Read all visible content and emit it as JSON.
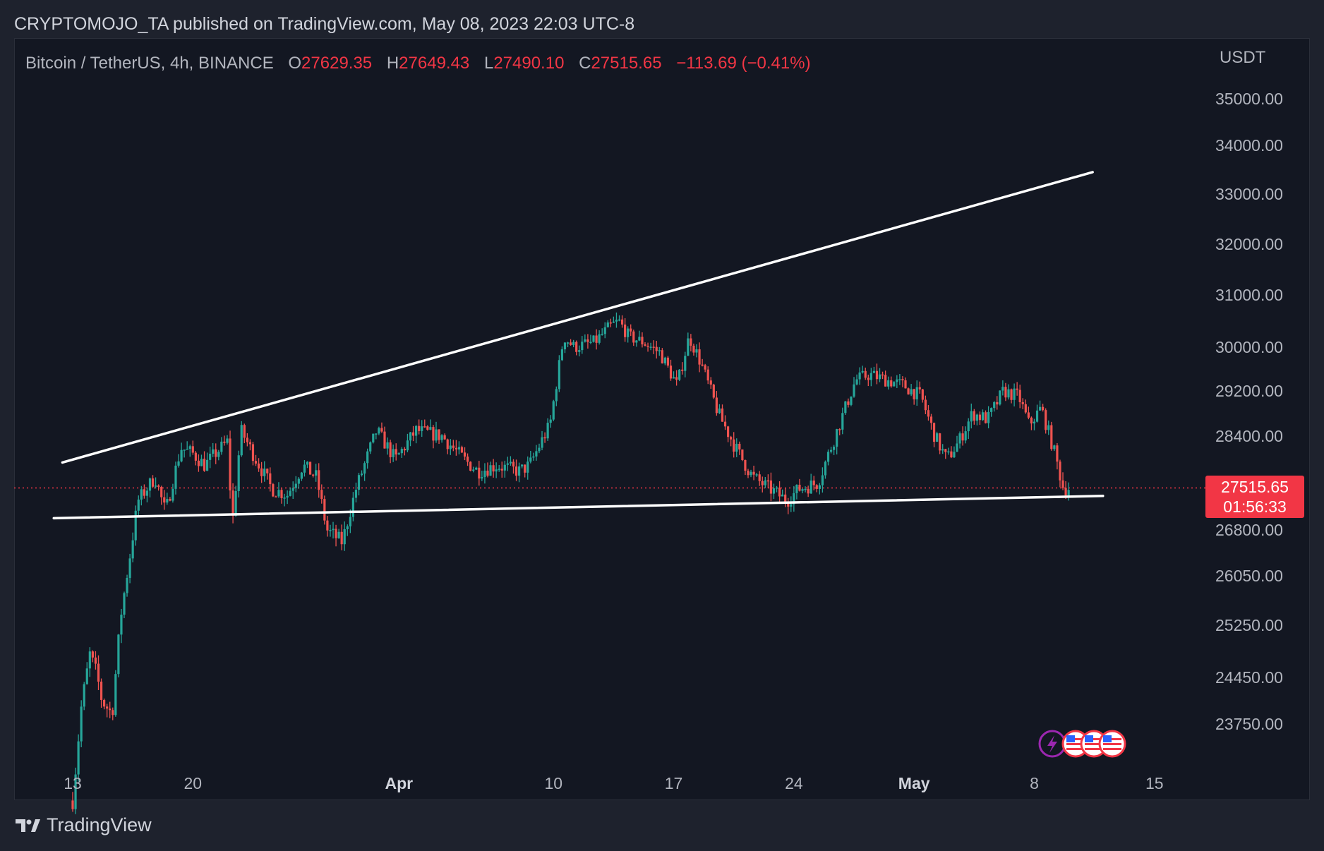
{
  "header": {
    "publish_text": "CRYPTOMOJO_TA published on TradingView.com, May 08, 2023 22:03 UTC-8"
  },
  "legend": {
    "symbol": "Bitcoin / TetherUS, 4h, BINANCE",
    "open_label": "O",
    "open": "27629.35",
    "high_label": "H",
    "high": "27649.43",
    "low_label": "L",
    "low": "27490.10",
    "close_label": "C",
    "close": "27515.65",
    "change": "−113.69 (−0.41%)"
  },
  "price_tag": {
    "price": "27515.65",
    "countdown": "01:56:33"
  },
  "footer": {
    "brand": "TradingView"
  },
  "colors": {
    "background": "#131722",
    "frame": "#1e222d",
    "up": "#26a69a",
    "down": "#ef5350",
    "trendline": "#ffffff",
    "tag": "#f23645"
  },
  "event_icons": [
    "lightning-icon",
    "us-flag-icon",
    "us-flag-icon",
    "us-flag-icon"
  ],
  "chart_data": {
    "type": "candlestick",
    "unit_label": "USDT",
    "y_ticks": [
      "35000.00",
      "34000.00",
      "33000.00",
      "32000.00",
      "31000.00",
      "30000.00",
      "29200.00",
      "28400.00",
      "26800.00",
      "26050.00",
      "25250.00",
      "24450.00",
      "23750.00"
    ],
    "x_ticks": [
      {
        "label": "13",
        "day": 0,
        "bold": false
      },
      {
        "label": "20",
        "day": 7,
        "bold": false
      },
      {
        "label": "Apr",
        "day": 19,
        "bold": true
      },
      {
        "label": "10",
        "day": 28,
        "bold": false
      },
      {
        "label": "17",
        "day": 35,
        "bold": false
      },
      {
        "label": "24",
        "day": 42,
        "bold": false
      },
      {
        "label": "May",
        "day": 49,
        "bold": true
      },
      {
        "label": "8",
        "day": 56,
        "bold": false
      },
      {
        "label": "15",
        "day": 63,
        "bold": false
      }
    ],
    "anchor_prices": [
      [
        0.0,
        22600
      ],
      [
        0.5,
        24000
      ],
      [
        1.0,
        24800
      ],
      [
        1.4,
        24500
      ],
      [
        1.7,
        24100
      ],
      [
        2.3,
        23900
      ],
      [
        2.8,
        25400
      ],
      [
        3.4,
        26500
      ],
      [
        3.8,
        27300
      ],
      [
        4.8,
        27700
      ],
      [
        5.4,
        27100
      ],
      [
        6.3,
        28200
      ],
      [
        7.0,
        28100
      ],
      [
        7.7,
        27900
      ],
      [
        8.3,
        28100
      ],
      [
        9.0,
        28300
      ],
      [
        9.3,
        26900
      ],
      [
        9.8,
        28500
      ],
      [
        10.5,
        28100
      ],
      [
        11.6,
        27500
      ],
      [
        12.5,
        27400
      ],
      [
        13.4,
        27900
      ],
      [
        14.2,
        27700
      ],
      [
        14.8,
        26800
      ],
      [
        15.7,
        26600
      ],
      [
        16.5,
        27500
      ],
      [
        17.7,
        28500
      ],
      [
        18.8,
        28000
      ],
      [
        20.0,
        28500
      ],
      [
        21.5,
        28400
      ],
      [
        22.8,
        28000
      ],
      [
        23.6,
        27800
      ],
      [
        24.7,
        27900
      ],
      [
        26.0,
        27800
      ],
      [
        26.6,
        27900
      ],
      [
        27.8,
        28600
      ],
      [
        28.6,
        30200
      ],
      [
        29.2,
        30000
      ],
      [
        30.4,
        30100
      ],
      [
        31.3,
        30400
      ],
      [
        31.8,
        30500
      ],
      [
        32.4,
        30200
      ],
      [
        33.2,
        30100
      ],
      [
        34.2,
        29900
      ],
      [
        35.2,
        29300
      ],
      [
        35.9,
        30200
      ],
      [
        36.6,
        29700
      ],
      [
        37.6,
        28800
      ],
      [
        38.6,
        28200
      ],
      [
        39.6,
        27700
      ],
      [
        40.6,
        27500
      ],
      [
        41.6,
        27300
      ],
      [
        42.3,
        27500
      ],
      [
        43.4,
        27600
      ],
      [
        44.4,
        28400
      ],
      [
        45.6,
        29400
      ],
      [
        46.4,
        29500
      ],
      [
        47.4,
        29400
      ],
      [
        48.4,
        29300
      ],
      [
        49.4,
        29100
      ],
      [
        50.2,
        28400
      ],
      [
        50.9,
        28000
      ],
      [
        51.6,
        28300
      ],
      [
        52.4,
        28800
      ],
      [
        53.3,
        28700
      ],
      [
        54.2,
        29200
      ],
      [
        55.1,
        29100
      ],
      [
        55.7,
        28600
      ],
      [
        56.4,
        28900
      ],
      [
        57.1,
        28200
      ],
      [
        57.7,
        27500
      ],
      [
        58.0,
        27516
      ]
    ],
    "trendlines": [
      {
        "name": "upper-trendline",
        "points": [
          [
            -0.6,
            27950
          ],
          [
            59.4,
            33450
          ]
        ]
      },
      {
        "name": "lower-trendline",
        "points": [
          [
            -1.1,
            27000
          ],
          [
            60.0,
            27380
          ]
        ]
      }
    ],
    "current_price": 27515.65
  }
}
